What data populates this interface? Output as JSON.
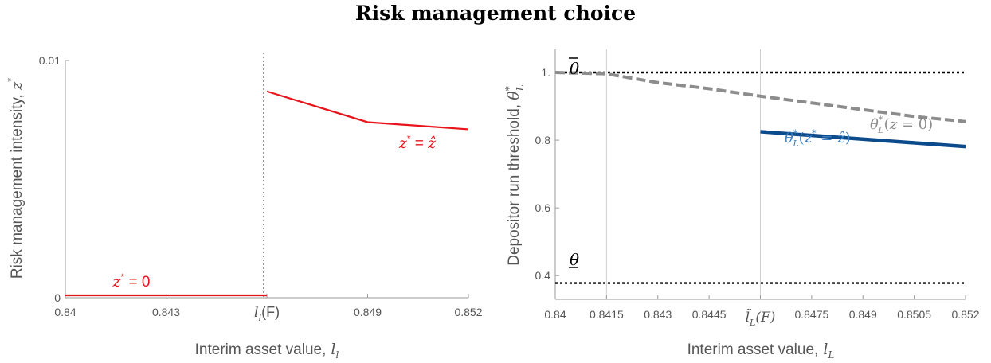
{
  "title": "Risk management choice",
  "chart_data": [
    {
      "type": "line",
      "xlabel": "Interim asset value, l_l",
      "ylabel": "Risk management intensity, z*",
      "xlim": [
        0.84,
        0.852
      ],
      "ylim": [
        0,
        0.01
      ],
      "x_ticks": [
        {
          "value": 0.84,
          "label": "0.84"
        },
        {
          "value": 0.843,
          "label": "0.843"
        },
        {
          "value": 0.846,
          "label": "l_l(F)"
        },
        {
          "value": 0.849,
          "label": "0.849"
        },
        {
          "value": 0.852,
          "label": "0.852"
        }
      ],
      "y_ticks": [
        {
          "value": 0,
          "label": "0"
        },
        {
          "value": 0.01,
          "label": "0.01"
        }
      ],
      "series": [
        {
          "name": "z* = 0",
          "color": "#e8141b",
          "x": [
            0.84,
            0.846
          ],
          "y": [
            0.0001,
            0.0001
          ]
        },
        {
          "name": "z* = ẑ",
          "color": "#e8141b",
          "x": [
            0.846,
            0.849,
            0.852
          ],
          "y": [
            0.0087,
            0.0074,
            0.0071
          ]
        }
      ],
      "vlines": [
        {
          "x": 0.846,
          "style": "dotted"
        }
      ]
    },
    {
      "type": "line",
      "xlabel": "Interim asset value, l_L",
      "ylabel": "Depositor run threshold, θ*_L",
      "xlim": [
        0.84,
        0.852
      ],
      "ylim": [
        0.33,
        1.0
      ],
      "x_ticks": [
        {
          "value": 0.84,
          "label": "0.84"
        },
        {
          "value": 0.8415,
          "label": "0.8415"
        },
        {
          "value": 0.843,
          "label": "0.843"
        },
        {
          "value": 0.8445,
          "label": "0.8445"
        },
        {
          "value": 0.846,
          "label": "l̃_L(F)"
        },
        {
          "value": 0.8475,
          "label": "0.8475"
        },
        {
          "value": 0.849,
          "label": "0.849"
        },
        {
          "value": 0.8505,
          "label": "0.8505"
        },
        {
          "value": 0.852,
          "label": "0.852"
        }
      ],
      "y_ticks": [
        {
          "value": 0.4,
          "label": "0.4"
        },
        {
          "value": 0.6,
          "label": "0.6"
        },
        {
          "value": 0.8,
          "label": "0.8"
        },
        {
          "value": 1.0,
          "label": "1."
        }
      ],
      "series": [
        {
          "name": "θ*_L(z = 0)",
          "color": "#8c8c8c",
          "style": "dashed",
          "x": [
            0.84,
            0.8415,
            0.843,
            0.8445,
            0.846,
            0.8475,
            0.849,
            0.8505,
            0.852
          ],
          "y": [
            1.0,
            0.996,
            0.97,
            0.952,
            0.93,
            0.91,
            0.89,
            0.87,
            0.855
          ]
        },
        {
          "name": "θ*_L(z* = ẑ)",
          "color": "#0b4a8b",
          "x": [
            0.846,
            0.852
          ],
          "y": [
            0.825,
            0.781
          ]
        }
      ],
      "hlines": [
        {
          "y": 1.0,
          "label": "θ̄",
          "style": "dotted"
        },
        {
          "y": 0.378,
          "label": "θ",
          "style": "dotted"
        }
      ],
      "vlines": [
        {
          "x": 0.8415
        },
        {
          "x": 0.846
        }
      ]
    }
  ]
}
